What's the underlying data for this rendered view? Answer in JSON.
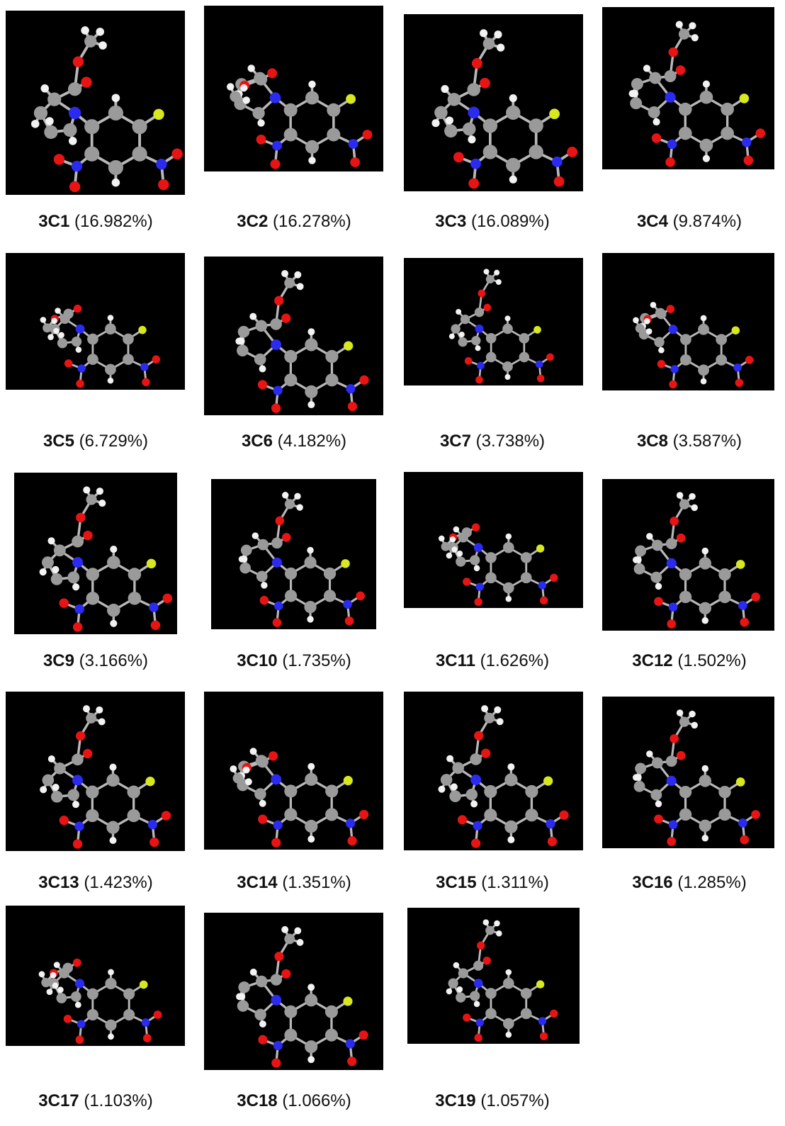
{
  "figure": {
    "panels": [
      {
        "id": "3C1",
        "percent": "(16.982%)"
      },
      {
        "id": "3C2",
        "percent": "(16.278%)"
      },
      {
        "id": "3C3",
        "percent": "(16.089%)"
      },
      {
        "id": "3C4",
        "percent": "(9.874%)"
      },
      {
        "id": "3C5",
        "percent": "(6.729%)"
      },
      {
        "id": "3C6",
        "percent": "(4.182%)"
      },
      {
        "id": "3C7",
        "percent": "(3.738%)"
      },
      {
        "id": "3C8",
        "percent": "(3.587%)"
      },
      {
        "id": "3C9",
        "percent": "(3.166%)"
      },
      {
        "id": "3C10",
        "percent": "(1.735%)"
      },
      {
        "id": "3C11",
        "percent": "(1.626%)"
      },
      {
        "id": "3C12",
        "percent": "(1.502%)"
      },
      {
        "id": "3C13",
        "percent": "(1.423%)"
      },
      {
        "id": "3C14",
        "percent": "(1.351%)"
      },
      {
        "id": "3C15",
        "percent": "(1.311%)"
      },
      {
        "id": "3C16",
        "percent": "(1.285%)"
      },
      {
        "id": "3C17",
        "percent": "(1.103%)"
      },
      {
        "id": "3C18",
        "percent": "(1.066%)"
      },
      {
        "id": "3C19",
        "percent": "(1.057%)"
      }
    ],
    "atom_colors": {
      "carbon": "#9a9a9a",
      "hydrogen": "#f2f2f2",
      "nitrogen": "#2b2bf0",
      "oxygen": "#e81414",
      "fluorine": "#d8e81e",
      "background": "#000000"
    }
  }
}
